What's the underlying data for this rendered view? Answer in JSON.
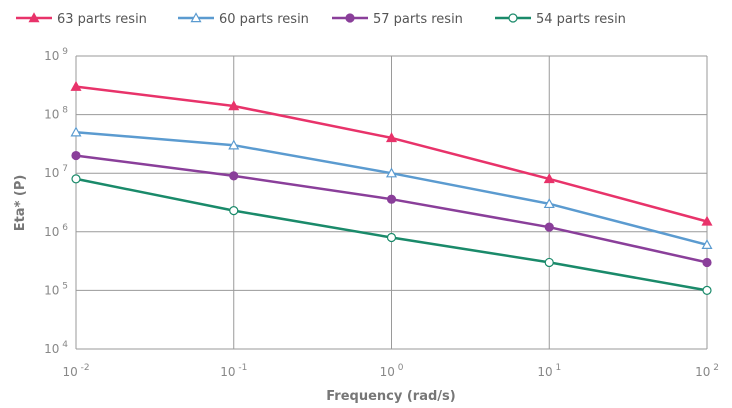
{
  "chart_data": {
    "type": "line",
    "xlabel": "Frequency (rad/s)",
    "ylabel": "Eta* (P)",
    "xscale": "log",
    "yscale": "log",
    "xlim": [
      0.01,
      100
    ],
    "ylim": [
      10000,
      1000000000
    ],
    "x": [
      0.01,
      0.1,
      1,
      10,
      100
    ],
    "x_tick_labels": [
      {
        "base": "10",
        "exp": "-2"
      },
      {
        "base": "10",
        "exp": "-1"
      },
      {
        "base": "10",
        "exp": "0"
      },
      {
        "base": "10",
        "exp": "1"
      },
      {
        "base": "10",
        "exp": "2"
      }
    ],
    "y_ticks": [
      10000,
      100000,
      1000000,
      10000000,
      100000000,
      1000000000
    ],
    "y_tick_labels": [
      {
        "base": "10",
        "exp": "4"
      },
      {
        "base": "10",
        "exp": "5"
      },
      {
        "base": "10",
        "exp": "6"
      },
      {
        "base": "10",
        "exp": "7"
      },
      {
        "base": "10",
        "exp": "8"
      },
      {
        "base": "10",
        "exp": "9"
      }
    ],
    "grid": true,
    "legend_position": "top",
    "series": [
      {
        "name": "63 parts resin",
        "color": "#e8336a",
        "marker": "filled-triangle",
        "values": [
          300000000,
          140000000,
          40000000,
          8000000,
          1500000
        ]
      },
      {
        "name": "60 parts resin",
        "color": "#5b9bd0",
        "marker": "open-triangle",
        "values": [
          50000000,
          30000000,
          10000000,
          3000000,
          600000
        ]
      },
      {
        "name": "57 parts resin",
        "color": "#8a3f9a",
        "marker": "filled-circle",
        "values": [
          20000000,
          9000000,
          3600000,
          1200000,
          300000
        ]
      },
      {
        "name": "54 parts resin",
        "color": "#1a8a6a",
        "marker": "open-circle",
        "values": [
          8000000,
          2300000,
          800000,
          300000,
          100000
        ]
      }
    ]
  }
}
